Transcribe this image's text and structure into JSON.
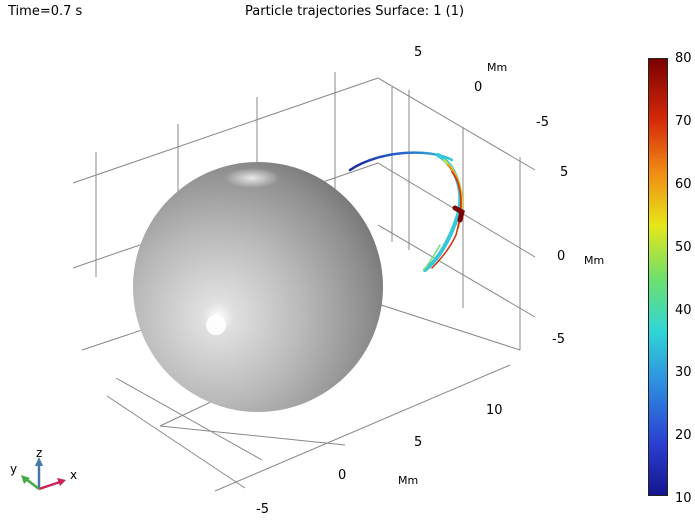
{
  "header": {
    "time_label": "Time=0.7 s",
    "title": "Particle trajectories  Surface: 1 (1)"
  },
  "axes": {
    "x_ticks": [
      "-5",
      "0",
      "5",
      "10"
    ],
    "x_unit": "Mm",
    "y_ticks": [
      "5",
      "0",
      "-5"
    ],
    "y_unit": "Mm",
    "z_ticks": [
      "5",
      "0",
      "-5"
    ],
    "z_unit": "Mm"
  },
  "colorbar": {
    "ticks": [
      "80",
      "70",
      "60",
      "50",
      "40",
      "30",
      "20",
      "10"
    ],
    "min": 10,
    "max": 80,
    "colormap": "rainbow (dark blue to dark red)"
  },
  "triad": {
    "x_label": "x",
    "y_label": "y",
    "z_label": "z",
    "x_color": "#cc2255",
    "y_color": "#44aa44",
    "z_color": "#4477aa"
  },
  "scene": {
    "sphere_color": "#b8b8b8",
    "grid_color": "#888888"
  }
}
